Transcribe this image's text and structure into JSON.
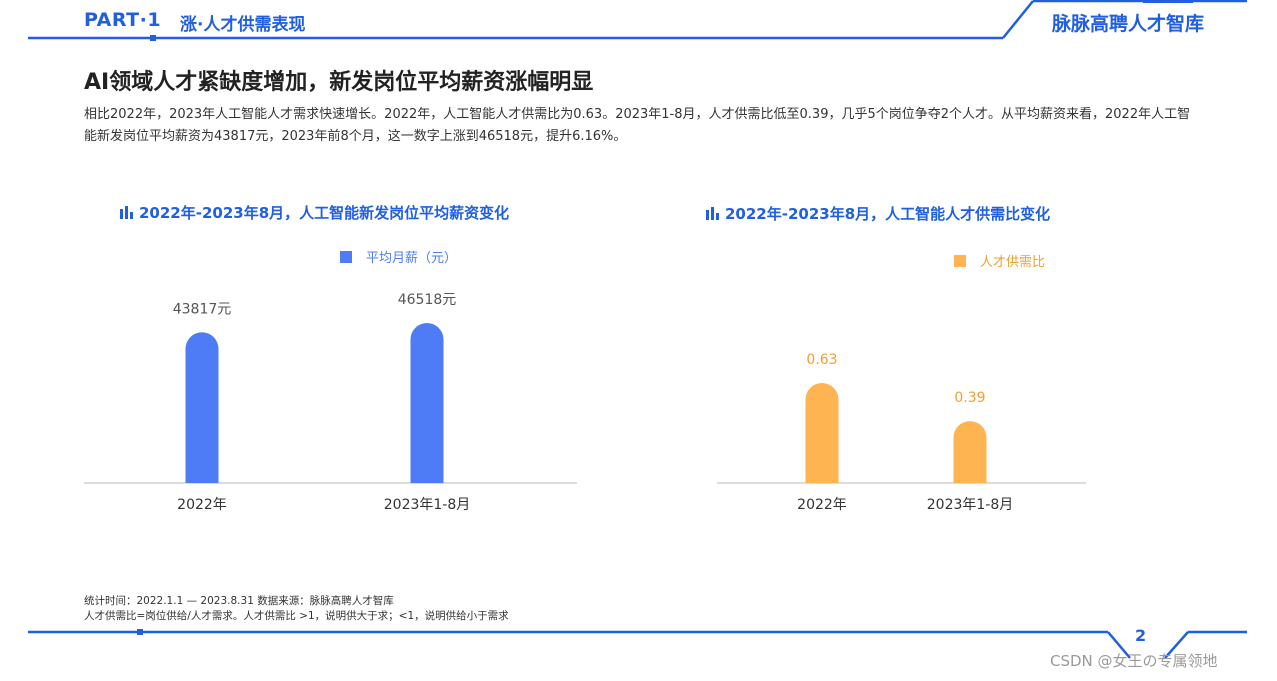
{
  "header": {
    "part": "PART·1",
    "section": "涨·人才供需表现",
    "brand": "脉脉高聘人才智库"
  },
  "title": "AI领域人才紧缺度增加，新发岗位平均薪资涨幅明显",
  "intro": "相比2022年，2023年人工智能人才需求快速增长。2022年，人工智能人才供需比为0.63。2023年1-8月，人才供需比低至0.39，几乎5个岗位争夺2个人才。从平均薪资来看，2022年人工智能新发岗位平均薪资为43817元，2023年前8个月，这一数字上涨到46518元，提升6.16%。",
  "colors": {
    "brand": "#1f5fe0",
    "salary_bar": "#4d7cf6",
    "ratio_bar": "#ffb452"
  },
  "chart_data": [
    {
      "type": "bar",
      "title": "2022年-2023年8月，人工智能新发岗位平均薪资变化",
      "categories": [
        "2022年",
        "2023年1-8月"
      ],
      "series": [
        {
          "name": "平均月薪（元）",
          "values": [
            43817,
            46518
          ],
          "color": "#4d7cf6"
        }
      ],
      "data_labels": [
        "43817元",
        "46518元"
      ],
      "legend_position": "top-center",
      "grid": false
    },
    {
      "type": "bar",
      "title": "2022年-2023年8月，人工智能人才供需比变化",
      "categories": [
        "2022年",
        "2023年1-8月"
      ],
      "series": [
        {
          "name": "人才供需比",
          "values": [
            0.63,
            0.39
          ],
          "color": "#ffb452"
        }
      ],
      "data_labels": [
        "0.63",
        "0.39"
      ],
      "legend_position": "top-right",
      "grid": false
    }
  ],
  "footnote": {
    "line1": "统计时间：2022.1.1 — 2023.8.31   数据来源：脉脉高聘人才智库",
    "line2": "人才供需比=岗位供给/人才需求。人才供需比 >1，说明供大于求；<1，说明供给小于需求"
  },
  "page_number": "2",
  "watermark": "CSDN @女王の专属领地"
}
